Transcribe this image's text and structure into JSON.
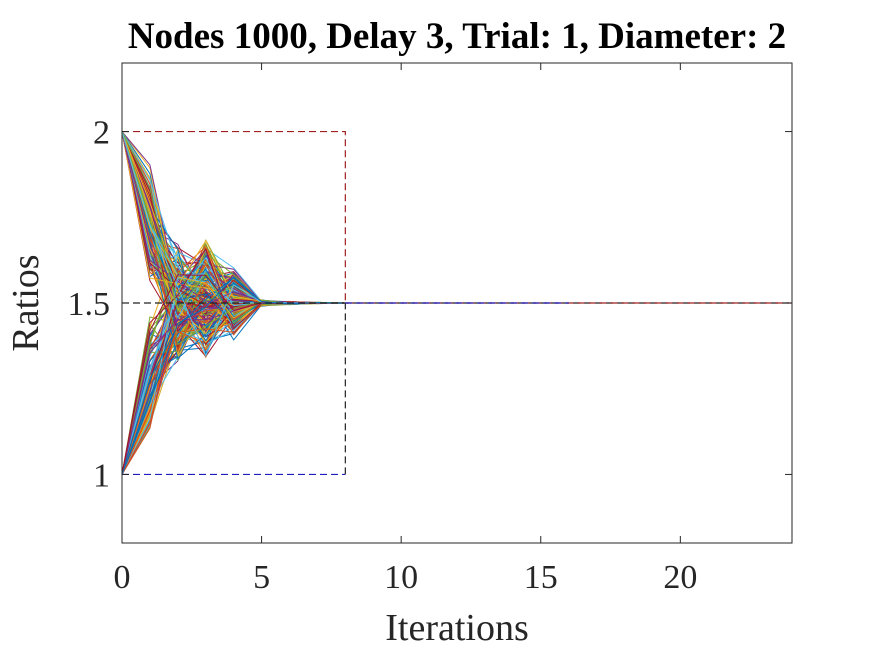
{
  "chart_data": {
    "type": "line",
    "title": "Nodes 1000, Delay 3, Trial: 1, Diameter: 2",
    "xlabel": "Iterations",
    "ylabel": "Ratios",
    "xlim": [
      0,
      24
    ],
    "ylim": [
      0.8,
      2.2
    ],
    "xticks": [
      0,
      5,
      10,
      15,
      20
    ],
    "yticks": [
      1,
      1.5,
      2
    ],
    "xtick_labels": [
      "0",
      "5",
      "10",
      "15",
      "20"
    ],
    "ytick_labels": [
      "1",
      "1.5",
      "2"
    ],
    "grid": false,
    "legend": "none",
    "target_ratio": 1.5,
    "num_series": 1000,
    "initial_values": [
      1,
      2
    ],
    "upper_bound": {
      "x": [
        0,
        1,
        2,
        3,
        4,
        5,
        6,
        7,
        8
      ],
      "y": [
        2,
        2,
        2,
        2,
        2,
        2,
        2,
        2,
        2
      ],
      "color": "#a02020"
    },
    "lower_bound": {
      "x": [
        0,
        1,
        2,
        3,
        4,
        5,
        6,
        7,
        8
      ],
      "y": [
        1,
        1,
        1,
        1,
        1,
        1,
        1,
        1,
        1
      ],
      "color": "#1f1fbf"
    },
    "bound_convergence_iteration": 8,
    "ratio_band": {
      "x": [
        0,
        1,
        2,
        3,
        4,
        5,
        6,
        7,
        8,
        24
      ],
      "max": [
        2.0,
        1.85,
        1.68,
        1.7,
        1.61,
        1.51,
        1.505,
        1.502,
        1.5,
        1.5
      ],
      "min": [
        1.0,
        1.15,
        1.3,
        1.33,
        1.39,
        1.49,
        1.495,
        1.498,
        1.5,
        1.5
      ]
    },
    "series_colors": [
      "#0072bd",
      "#d95319",
      "#edb120",
      "#7e2f8e",
      "#77ac30",
      "#4dbeee",
      "#a2142f"
    ]
  }
}
